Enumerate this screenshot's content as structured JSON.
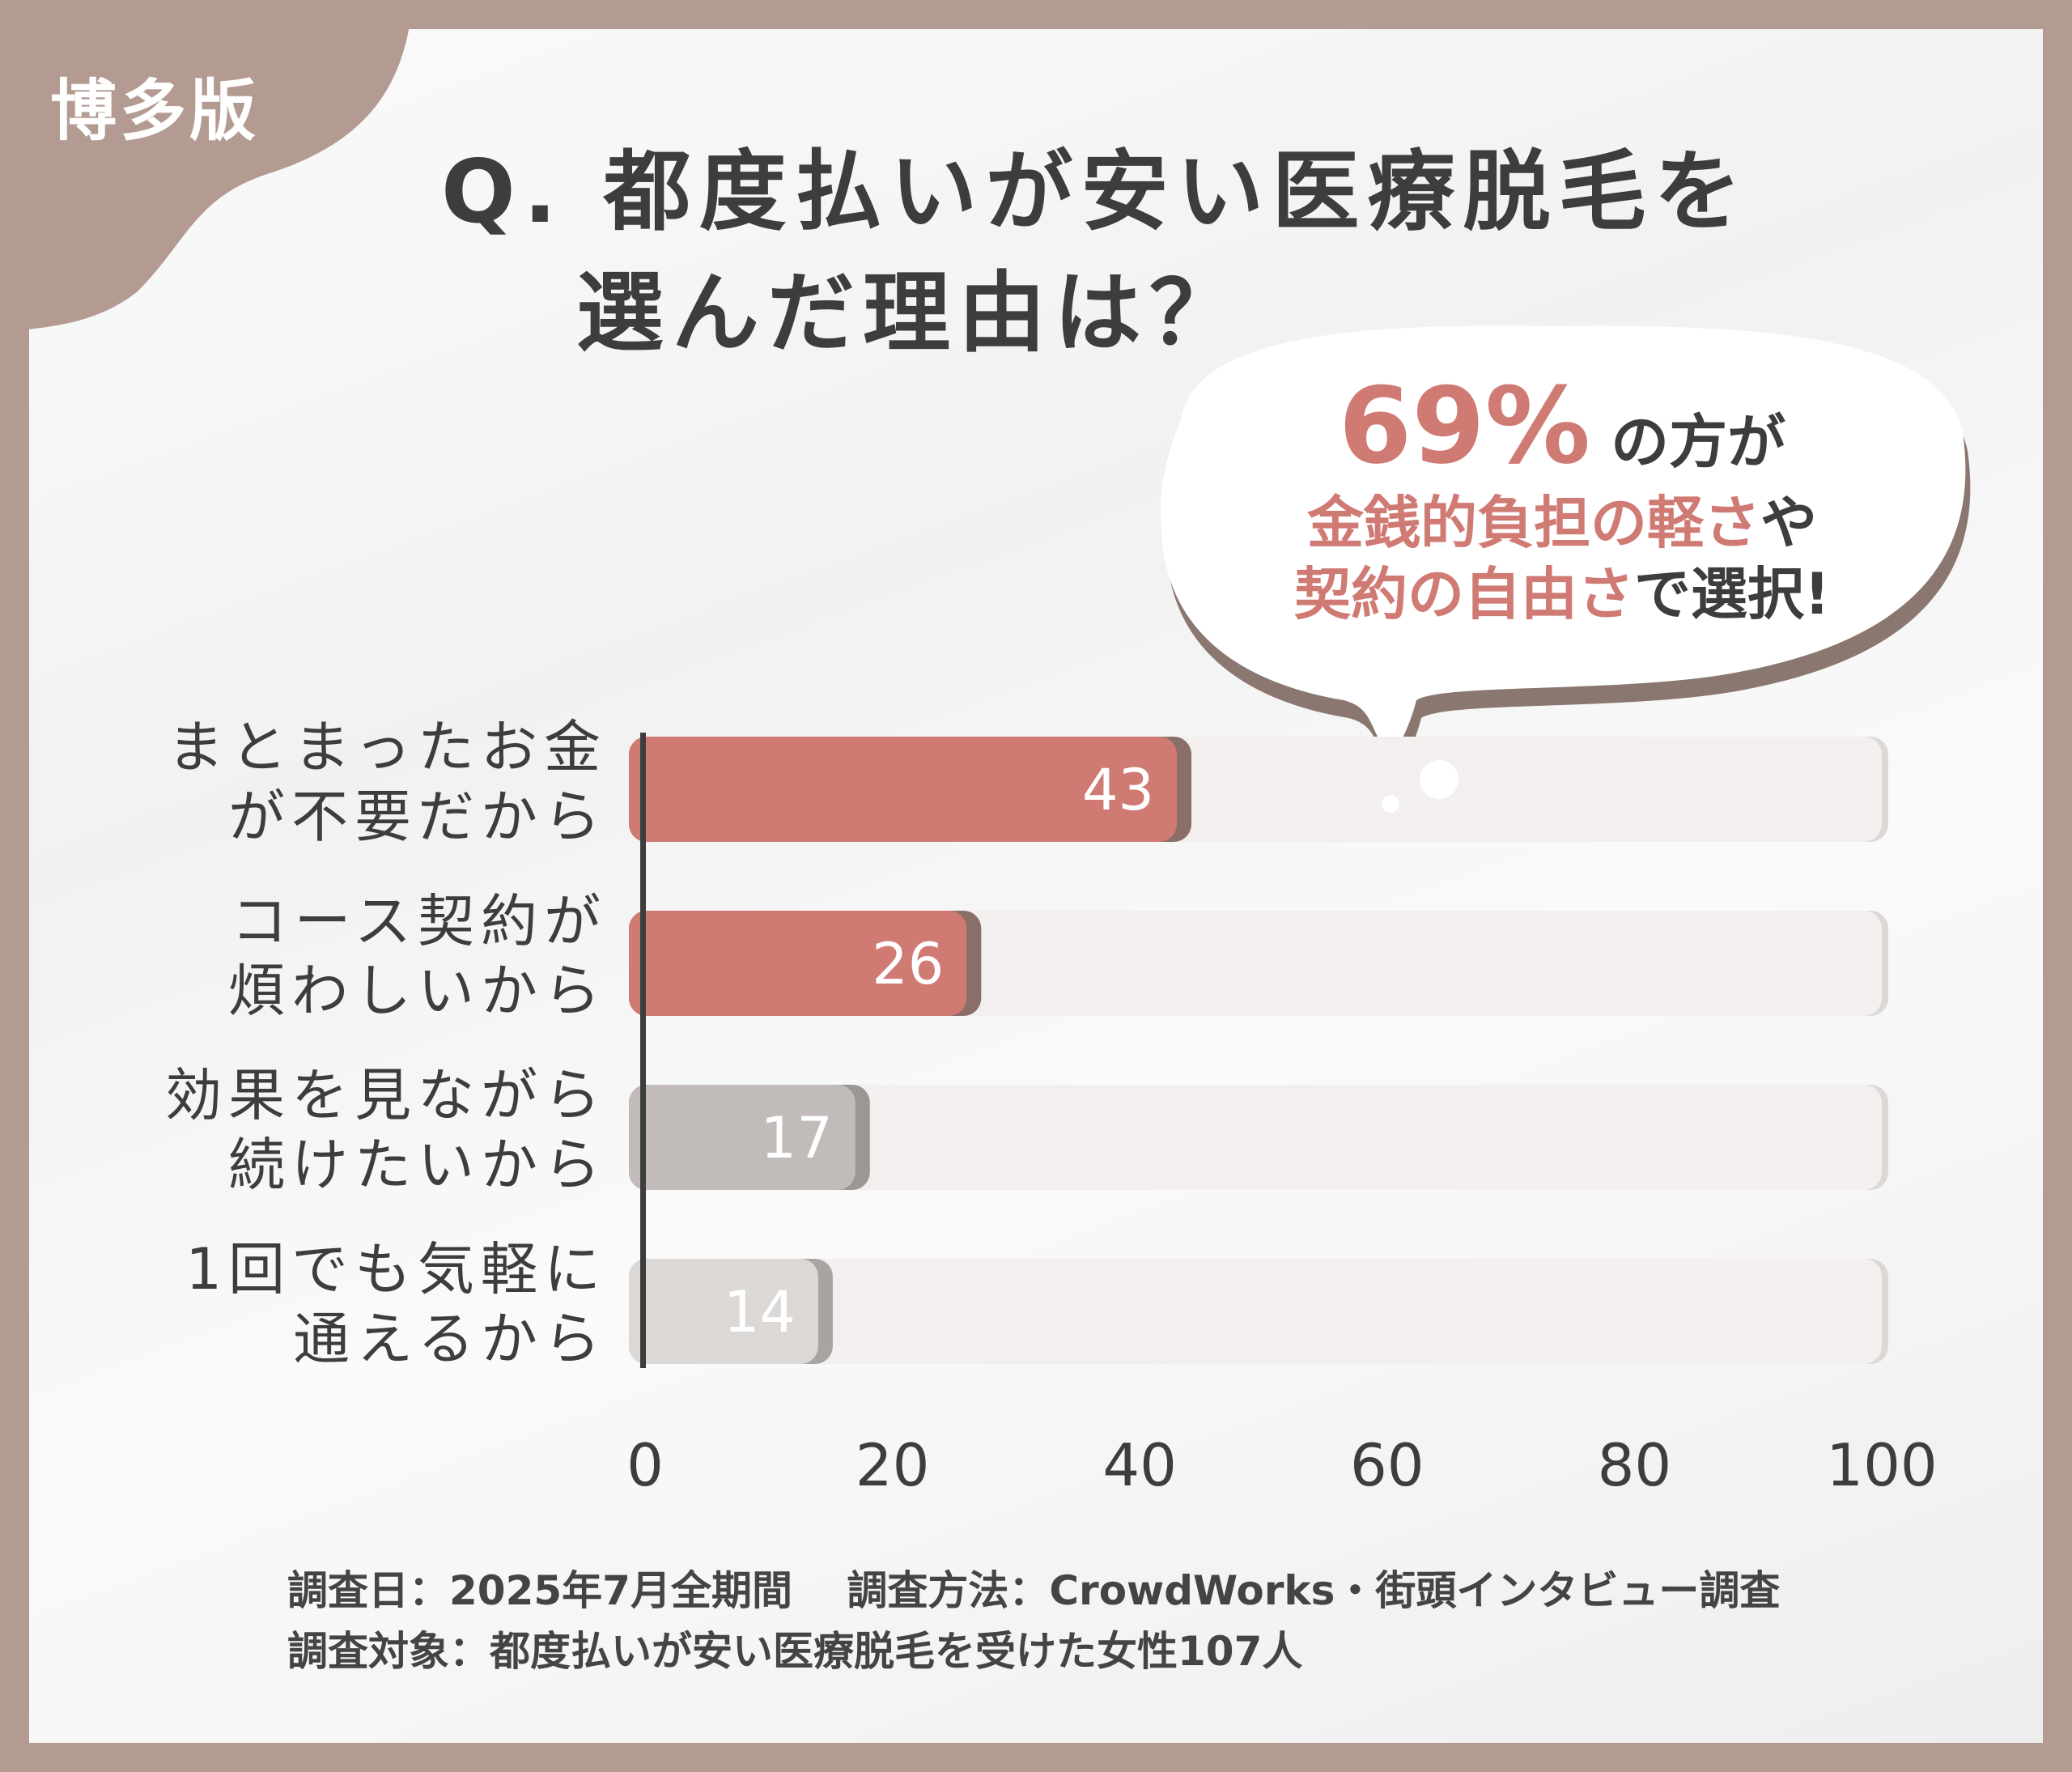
{
  "edition": "博多版",
  "title": {
    "line1": "Q. 都度払いが安い医療脱毛を",
    "line2": "選んだ理由は？"
  },
  "callout": {
    "percent": "69%",
    "line1_rest": "の方が",
    "line2_pink": "金銭的負担の軽さ",
    "line2_rest": "や",
    "line3_pink": "契約の自由さ",
    "line3_rest": "で選択!"
  },
  "chart_data": {
    "type": "bar",
    "orientation": "horizontal",
    "categories": [
      [
        "まとまったお金",
        "が不要だから"
      ],
      [
        "コース契約が",
        "煩わしいから"
      ],
      [
        "効果を見ながら",
        "続けたいから"
      ],
      [
        "1回でも気軽に",
        "通えるから"
      ]
    ],
    "values": [
      43,
      26,
      17,
      14
    ],
    "value_labels": [
      "43",
      "26",
      "17",
      "14"
    ],
    "xlim": [
      0,
      100
    ],
    "xticks": [
      "0",
      "20",
      "40",
      "60",
      "80",
      "100"
    ],
    "bar_colors": [
      "#d07a74",
      "#d07a74",
      "#c1bcba",
      "#dcd8d6"
    ],
    "shadow_colors": [
      "#8a6e68",
      "#8a6e68",
      "#9b9795",
      "#a8a4a2"
    ],
    "track_color": "#f2efee",
    "grid": false
  },
  "footer": {
    "line1": "調査日：2025年7月全期間　 調査方法：CrowdWorks・街頭インタビュー調査",
    "line2": "調査対象：都度払いが安い医療脱毛を受けた女性107人"
  },
  "colors": {
    "frame": "#b39b92",
    "accent": "#d07a74",
    "text": "#3d3d3d"
  }
}
